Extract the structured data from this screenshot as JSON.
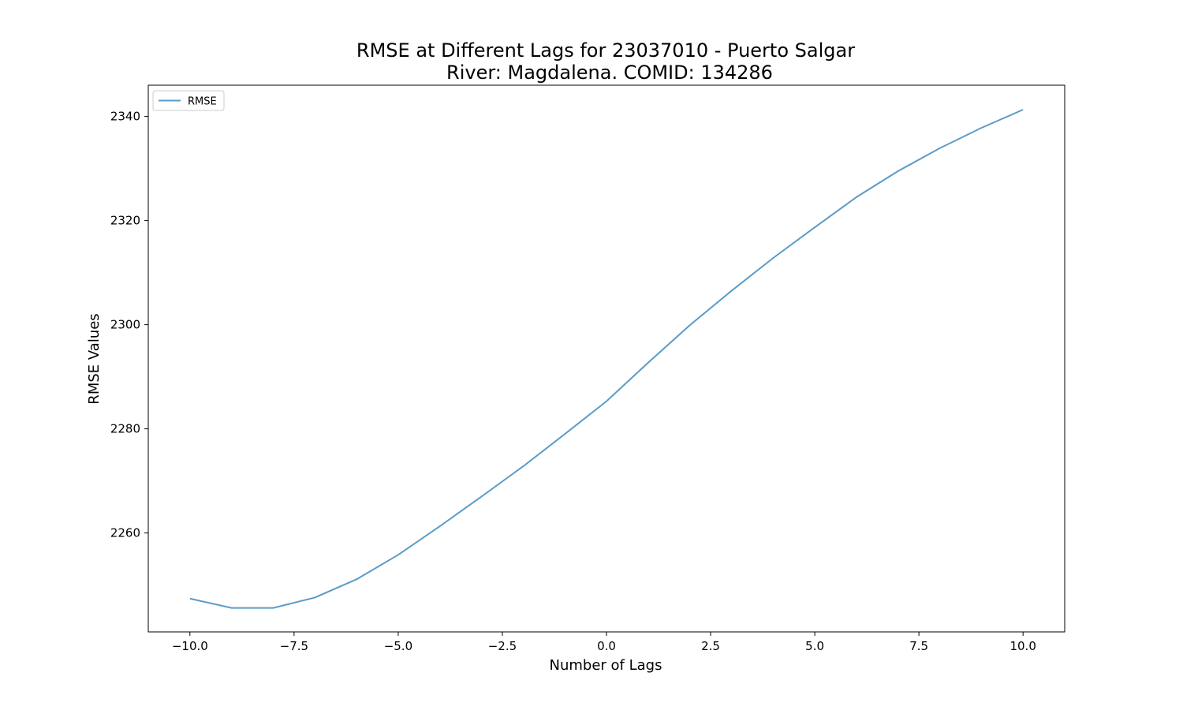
{
  "chart_data": {
    "type": "line",
    "title_line1": "RMSE at Different Lags for 23037010 - Puerto Salgar",
    "title_line2": "River: Magdalena. COMID: 134286",
    "xlabel": "Number of Lags",
    "ylabel": "RMSE Values",
    "xlim": [
      -11,
      11
    ],
    "ylim": [
      2241,
      2346
    ],
    "x_ticks": [
      -10.0,
      -7.5,
      -5.0,
      -2.5,
      0.0,
      2.5,
      5.0,
      7.5,
      10.0
    ],
    "x_tick_labels": [
      "−10.0",
      "−7.5",
      "−5.0",
      "−2.5",
      "0.0",
      "2.5",
      "5.0",
      "7.5",
      "10.0"
    ],
    "y_ticks": [
      2260,
      2280,
      2300,
      2320,
      2340
    ],
    "y_tick_labels": [
      "2260",
      "2280",
      "2300",
      "2320",
      "2340"
    ],
    "grid": false,
    "legend_position": "top-left",
    "series": [
      {
        "name": "RMSE",
        "color": "#5b9bc8",
        "x": [
          -10,
          -9,
          -8,
          -7,
          -6,
          -5,
          -4,
          -3,
          -2,
          -1,
          0,
          1,
          2,
          3,
          4,
          5,
          6,
          7,
          8,
          9,
          10
        ],
        "y": [
          2247.4,
          2245.6,
          2245.6,
          2247.6,
          2251.1,
          2255.8,
          2261.3,
          2267.0,
          2272.8,
          2279.0,
          2285.3,
          2292.7,
          2299.9,
          2306.5,
          2312.8,
          2318.7,
          2324.5,
          2329.5,
          2333.9,
          2337.8,
          2341.3
        ]
      }
    ]
  }
}
